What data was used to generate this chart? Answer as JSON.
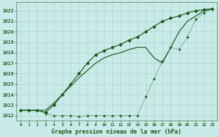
{
  "title": "Graphe pression niveau de la mer (hPa)",
  "background_color": "#c8eae8",
  "grid_color": "#b0d4d0",
  "line_color": "#1a5c1a",
  "ylim": [
    1011.5,
    1022.8
  ],
  "yticks": [
    1012,
    1013,
    1014,
    1015,
    1016,
    1017,
    1018,
    1019,
    1020,
    1021,
    1022
  ],
  "series1": [
    1012.5,
    1012.5,
    1012.5,
    1012.5,
    1013.2,
    1014.0,
    1014.8,
    1015.6,
    1016.3,
    1017.0,
    1017.5,
    1017.8,
    1018.0,
    1018.3,
    1018.5,
    1018.5,
    1017.5,
    1017.0,
    1018.5,
    1020.0,
    1021.0,
    1021.5,
    1022.0,
    1022.2
  ],
  "series2": [
    1012.5,
    1012.5,
    1012.5,
    1012.3,
    1013.0,
    1014.0,
    1015.0,
    1016.0,
    1017.0,
    1017.8,
    1018.2,
    1018.5,
    1018.8,
    1019.2,
    1019.5,
    1020.0,
    1020.5,
    1021.0,
    1021.3,
    1021.5,
    1021.8,
    1022.0,
    1022.1,
    1022.2
  ],
  "series3": [
    1012.5,
    1012.5,
    1012.5,
    1012.2,
    1012.0,
    1012.0,
    1012.0,
    1011.9,
    1012.0,
    1012.0,
    1012.0,
    1012.0,
    1012.0,
    1012.0,
    1012.0,
    1013.8,
    1015.5,
    1017.2,
    1018.5,
    1018.3,
    1019.5,
    1021.2,
    1021.8,
    1022.2
  ]
}
